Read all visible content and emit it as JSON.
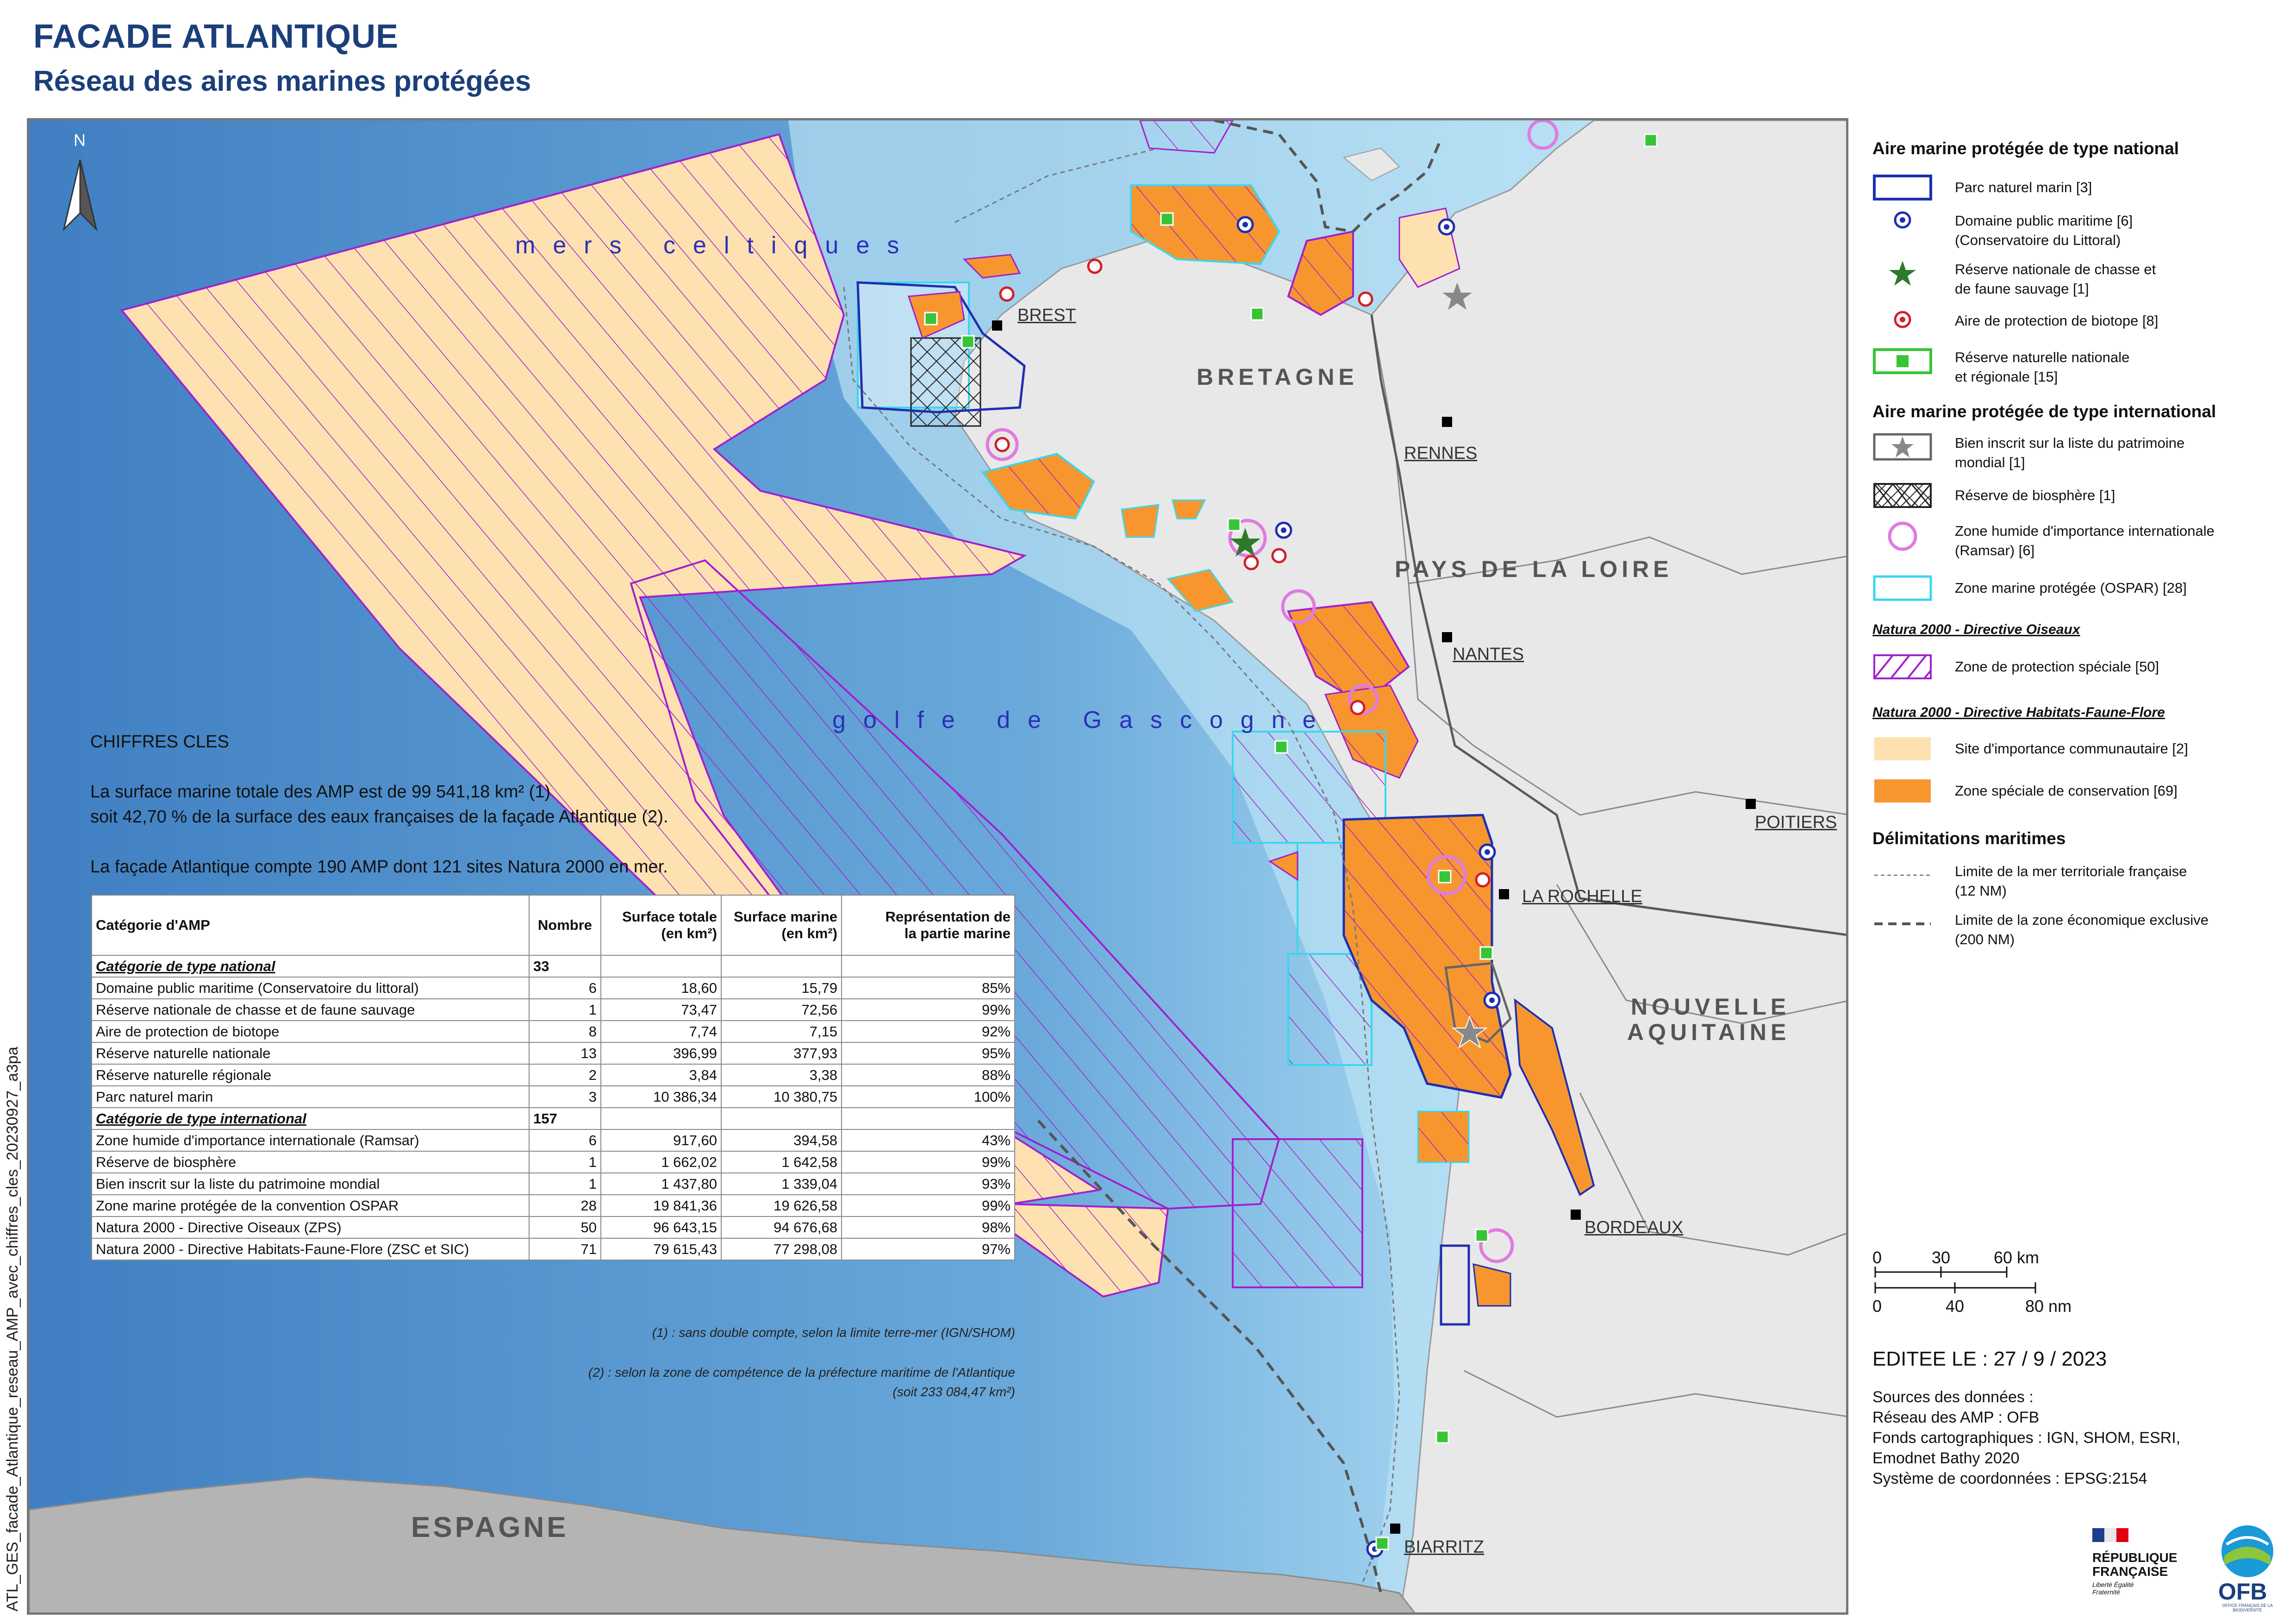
{
  "header": {
    "title": "FACADE ATLANTIQUE",
    "subtitle": "Réseau des aires marines protégées"
  },
  "side_code": "ATL_GES_facade_Atlantique_reseau_AMP_avec_chiffres_cles_20230927_a3pa",
  "map": {
    "north_arrow": "N",
    "sea_labels": {
      "celtic": "mers celtiques",
      "gascogne": "golfe de Gascogne"
    },
    "regions": {
      "bretagne": "BRETAGNE",
      "pays_de_la_loire": "PAYS DE LA LOIRE",
      "nouvelle_aquitaine_1": "NOUVELLE",
      "nouvelle_aquitaine_2": "AQUITAINE",
      "espagne": "ESPAGNE"
    },
    "cities": {
      "brest": "BREST",
      "rennes": "RENNES",
      "nantes": "NANTES",
      "poitiers": "POITIERS",
      "la_rochelle": "LA ROCHELLE",
      "bordeaux": "BORDEAUX",
      "biarritz": "BIARRITZ"
    },
    "colors": {
      "sea": "#8fc6e6",
      "deep_sea": "#4d8fcb",
      "land": "#e8e8e8",
      "spain": "#b4b4b4",
      "sic": "#fde1b1",
      "zsc": "#f7962f",
      "zps": "#a21fd0",
      "ospar": "#38d8ee",
      "pnm": "#1f2fb0"
    }
  },
  "key_figures": {
    "title": "CHIFFRES CLES",
    "line1": "La surface marine totale des AMP est de 99 541,18 km² (1)",
    "line2": "soit 42,70 % de la surface des eaux françaises de la façade Atlantique (2).",
    "line3": "La façade Atlantique compte 190 AMP dont 121 sites Natura 2000 en mer."
  },
  "table": {
    "headers": {
      "category": "Catégorie d'AMP",
      "count": "Nombre",
      "total_1": "Surface totale",
      "total_2": "(en km²)",
      "marine_1": "Surface marine",
      "marine_2": "(en km²)",
      "share_1": "Représentation de",
      "share_2": "la partie marine"
    },
    "national": {
      "label": "Catégorie de type national",
      "count": "33",
      "rows": [
        {
          "name": "Domaine public maritime (Conservatoire du littoral)",
          "count": "6",
          "total": "18,60",
          "marine": "15,79",
          "share": "85%"
        },
        {
          "name": "Réserve nationale de chasse et de faune sauvage",
          "count": "1",
          "total": "73,47",
          "marine": "72,56",
          "share": "99%"
        },
        {
          "name": "Aire de protection de biotope",
          "count": "8",
          "total": "7,74",
          "marine": "7,15",
          "share": "92%"
        },
        {
          "name": "Réserve naturelle nationale",
          "count": "13",
          "total": "396,99",
          "marine": "377,93",
          "share": "95%"
        },
        {
          "name": "Réserve naturelle régionale",
          "count": "2",
          "total": "3,84",
          "marine": "3,38",
          "share": "88%"
        },
        {
          "name": "Parc naturel marin",
          "count": "3",
          "total": "10 386,34",
          "marine": "10 380,75",
          "share": "100%"
        }
      ]
    },
    "international": {
      "label": "Catégorie de type international",
      "count": "157",
      "rows": [
        {
          "name": "Zone humide d'importance internationale (Ramsar)",
          "count": "6",
          "total": "917,60",
          "marine": "394,58",
          "share": "43%"
        },
        {
          "name": "Réserve de biosphère",
          "count": "1",
          "total": "1 662,02",
          "marine": "1 642,58",
          "share": "99%"
        },
        {
          "name": "Bien inscrit sur la liste du patrimoine mondial",
          "count": "1",
          "total": "1 437,80",
          "marine": "1 339,04",
          "share": "93%"
        },
        {
          "name": "Zone marine protégée de la convention OSPAR",
          "count": "28",
          "total": "19 841,36",
          "marine": "19 626,58",
          "share": "99%"
        },
        {
          "name": "Natura 2000 - Directive Oiseaux (ZPS)",
          "count": "50",
          "total": "96 643,15",
          "marine": "94 676,68",
          "share": "98%"
        },
        {
          "name": "Natura 2000 - Directive Habitats-Faune-Flore (ZSC et SIC)",
          "count": "71",
          "total": "79 615,43",
          "marine": "77 298,08",
          "share": "97%"
        }
      ]
    }
  },
  "footnotes": {
    "note1": "(1) : sans double compte, selon la limite terre-mer (IGN/SHOM)",
    "note2a": "(2) : selon la zone de compétence de la préfecture maritime de l'Atlantique",
    "note2b": "(soit 233 084,47 km²)"
  },
  "legend": {
    "national_title": "Aire marine protégée de type national",
    "pnm": "Parc naturel marin [3]",
    "dpm_1": "Domaine public maritime [6]",
    "dpm_2": "(Conservatoire du Littoral)",
    "rncfs_1": "Réserve nationale de chasse et",
    "rncfs_2": "de faune sauvage [1]",
    "apb": "Aire de protection de biotope [8]",
    "rn_1": "Réserve naturelle nationale",
    "rn_2": "et régionale [15]",
    "international_title": "Aire marine protégée de type international",
    "unesco_1": "Bien inscrit sur la liste du patrimoine",
    "unesco_2": "mondial [1]",
    "biosphere": "Réserve de biosphère [1]",
    "ramsar_1": "Zone humide d'importance internationale",
    "ramsar_2": "(Ramsar) [6]",
    "ospar": "Zone marine protégée (OSPAR) [28]",
    "n2000_oiseaux_title": "Natura 2000 - Directive Oiseaux",
    "zps": "Zone de protection spéciale [50]",
    "n2000_habitats_title": "Natura 2000 - Directive Habitats-Faune-Flore",
    "sic": "Site d'importance communautaire  [2]",
    "zsc": "Zone spéciale de conservation [69]",
    "limits_title": "Délimitations maritimes",
    "territorial_1": "Limite de la mer territoriale française",
    "territorial_2": "(12 NM)",
    "zee_1": "Limite de la zone économique exclusive",
    "zee_2": "(200 NM)"
  },
  "scalebar": {
    "km0": "0",
    "km30": "30",
    "km60": "60 km",
    "nm0": "0",
    "nm40": "40",
    "nm80": "80 nm"
  },
  "edition": "EDITEE LE : 27 / 9 / 2023",
  "sources": {
    "l1": "Sources des données :",
    "l2": "Réseau des AMP : OFB",
    "l3": "Fonds cartographiques : IGN, SHOM, ESRI,",
    "l4": "Emodnet Bathy 2020",
    "l5": "Système de coordonnées : EPSG:2154"
  },
  "logos": {
    "rf_1": "RÉPUBLIQUE",
    "rf_2": "FRANÇAISE",
    "rf_motto": "Liberté Égalité Fraternité",
    "ofb": "OFB",
    "ofb_sub": "OFFICE FRANÇAIS DE LA BIODIVERSITÉ"
  }
}
